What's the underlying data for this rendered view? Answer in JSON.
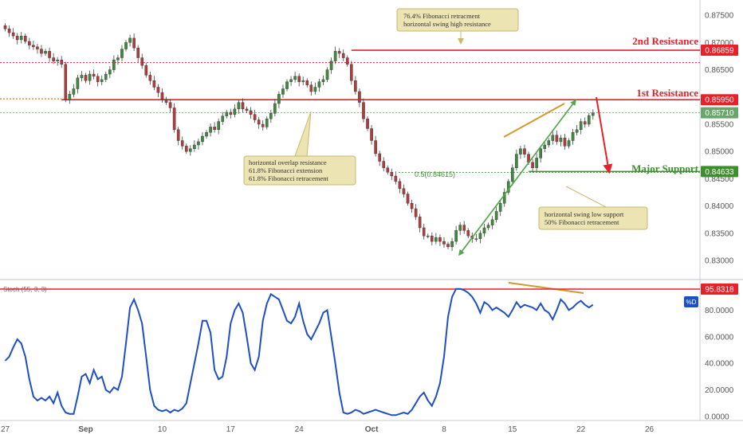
{
  "chart_data": [
    {
      "type": "candlestick",
      "price_axis": {
        "ylim": [
          0.8265,
          0.8778
        ],
        "ticks": [
          "0.87500",
          "0.87000",
          "0.86500",
          "0.86000",
          "0.85500",
          "0.85000",
          "0.84500",
          "0.84000",
          "0.83500",
          "0.83000"
        ]
      },
      "x_axis": {
        "ticks": [
          {
            "label": "27",
            "bar": 0
          },
          {
            "label": "Sep",
            "bar": 20
          },
          {
            "label": "10",
            "bar": 39
          },
          {
            "label": "17",
            "bar": 56
          },
          {
            "label": "24",
            "bar": 73
          },
          {
            "label": "Oct",
            "bar": 91
          },
          {
            "label": "8",
            "bar": 109
          },
          {
            "label": "15",
            "bar": 126
          },
          {
            "label": "22",
            "bar": 143
          },
          {
            "label": "26",
            "bar": 160
          }
        ]
      },
      "close_series": [
        0.8725,
        0.8718,
        0.8712,
        0.8705,
        0.8712,
        0.8702,
        0.8695,
        0.8692,
        0.8688,
        0.868,
        0.8684,
        0.8672,
        0.8666,
        0.8668,
        0.866,
        0.8595,
        0.8605,
        0.8615,
        0.8635,
        0.864,
        0.863,
        0.8642,
        0.8638,
        0.8628,
        0.8632,
        0.8642,
        0.865,
        0.8668,
        0.8672,
        0.8688,
        0.87,
        0.8708,
        0.869,
        0.8672,
        0.8658,
        0.864,
        0.863,
        0.8618,
        0.8608,
        0.8596,
        0.859,
        0.858,
        0.854,
        0.852,
        0.851,
        0.85,
        0.8505,
        0.8512,
        0.8518,
        0.8528,
        0.8535,
        0.8545,
        0.854,
        0.8555,
        0.8565,
        0.8572,
        0.8568,
        0.8578,
        0.859,
        0.8578,
        0.8575,
        0.8568,
        0.8558,
        0.855,
        0.8545,
        0.856,
        0.857,
        0.8588,
        0.8605,
        0.8615,
        0.8628,
        0.8632,
        0.8638,
        0.8628,
        0.863,
        0.8622,
        0.861,
        0.8618,
        0.8628,
        0.8632,
        0.865,
        0.8666,
        0.8684,
        0.868,
        0.8672,
        0.866,
        0.863,
        0.861,
        0.859,
        0.856,
        0.8542,
        0.852,
        0.8496,
        0.8482,
        0.847,
        0.8462,
        0.8455,
        0.8445,
        0.8432,
        0.8422,
        0.8405,
        0.8395,
        0.838,
        0.836,
        0.8345,
        0.8345,
        0.8335,
        0.8342,
        0.8335,
        0.833,
        0.8325,
        0.8335,
        0.8355,
        0.8365,
        0.8355,
        0.8345,
        0.834,
        0.834,
        0.835,
        0.836,
        0.8365,
        0.8375,
        0.839,
        0.8405,
        0.8425,
        0.8445,
        0.847,
        0.8495,
        0.8505,
        0.8495,
        0.848,
        0.847,
        0.8488,
        0.8505,
        0.8512,
        0.852,
        0.853,
        0.8518,
        0.8525,
        0.851,
        0.852,
        0.8535,
        0.854,
        0.8555,
        0.855,
        0.8566,
        0.8571
      ],
      "horizontal_levels": [
        {
          "name": "2nd Resistance",
          "value": 0.86859,
          "color": "#e8202a",
          "label": "0.86859"
        },
        {
          "name": "1st Resistance",
          "value": 0.8595,
          "color": "#e8202a",
          "label": "0.85950"
        },
        {
          "name": "current price",
          "value": 0.8571,
          "color": "#69a669",
          "label": "0.85710"
        },
        {
          "name": "Major Support",
          "value": 0.84633,
          "color": "#3e8e2e",
          "label": "0.84633"
        }
      ],
      "fibonacci_label": "0.5(0.84615)",
      "annotations": {
        "second_resistance": "2nd Resistance",
        "first_resistance": "1st Resistance",
        "major_support": "Major Support",
        "note_top": [
          "76.4% Fibonacci retracment",
          "horizontal swing high resistance"
        ],
        "note_left": [
          "horizontal overlap resistance",
          "61.8% Fibonacci extension",
          "61.8% Fibonacci retracement"
        ],
        "note_right": [
          "horizontal swing low support",
          "50% Fibonacci retracement"
        ]
      }
    },
    {
      "type": "line",
      "title": "Stoch (55, 3, 3)",
      "ylim": [
        -3,
        103
      ],
      "ticks": [
        "80.0000",
        "60.0000",
        "40.0000",
        "20.0000",
        "0.0000"
      ],
      "level": {
        "value": 95.8318,
        "label": "95.8318",
        "color": "#e8202a"
      },
      "series": [
        {
          "name": "%D",
          "color": "#1e4fc4",
          "values": [
            42,
            45,
            52,
            58,
            55,
            45,
            28,
            15,
            12,
            14,
            12,
            15,
            10,
            18,
            8,
            3,
            2,
            2,
            15,
            30,
            32,
            25,
            35,
            28,
            30,
            20,
            18,
            22,
            20,
            30,
            55,
            82,
            88,
            80,
            70,
            45,
            20,
            8,
            5,
            4,
            5,
            3,
            5,
            4,
            6,
            10,
            25,
            40,
            55,
            72,
            72,
            63,
            35,
            28,
            30,
            45,
            70,
            80,
            85,
            78,
            60,
            40,
            35,
            45,
            72,
            85,
            92,
            90,
            88,
            80,
            72,
            70,
            75,
            85,
            72,
            62,
            58,
            64,
            70,
            78,
            80,
            60,
            40,
            18,
            3,
            2,
            3,
            5,
            4,
            2,
            3,
            4,
            5,
            4,
            3,
            2,
            1,
            1,
            2,
            3,
            2,
            5,
            10,
            15,
            18,
            12,
            8,
            15,
            25,
            45,
            75,
            90,
            96,
            96,
            95,
            93,
            90,
            85,
            78,
            86,
            84,
            80,
            82,
            80,
            78,
            75,
            80,
            86,
            82,
            84,
            83,
            82,
            80,
            85,
            80,
            78,
            73,
            80,
            88,
            85,
            80,
            82,
            85,
            87,
            84,
            82,
            84
          ]
        }
      ]
    }
  ]
}
